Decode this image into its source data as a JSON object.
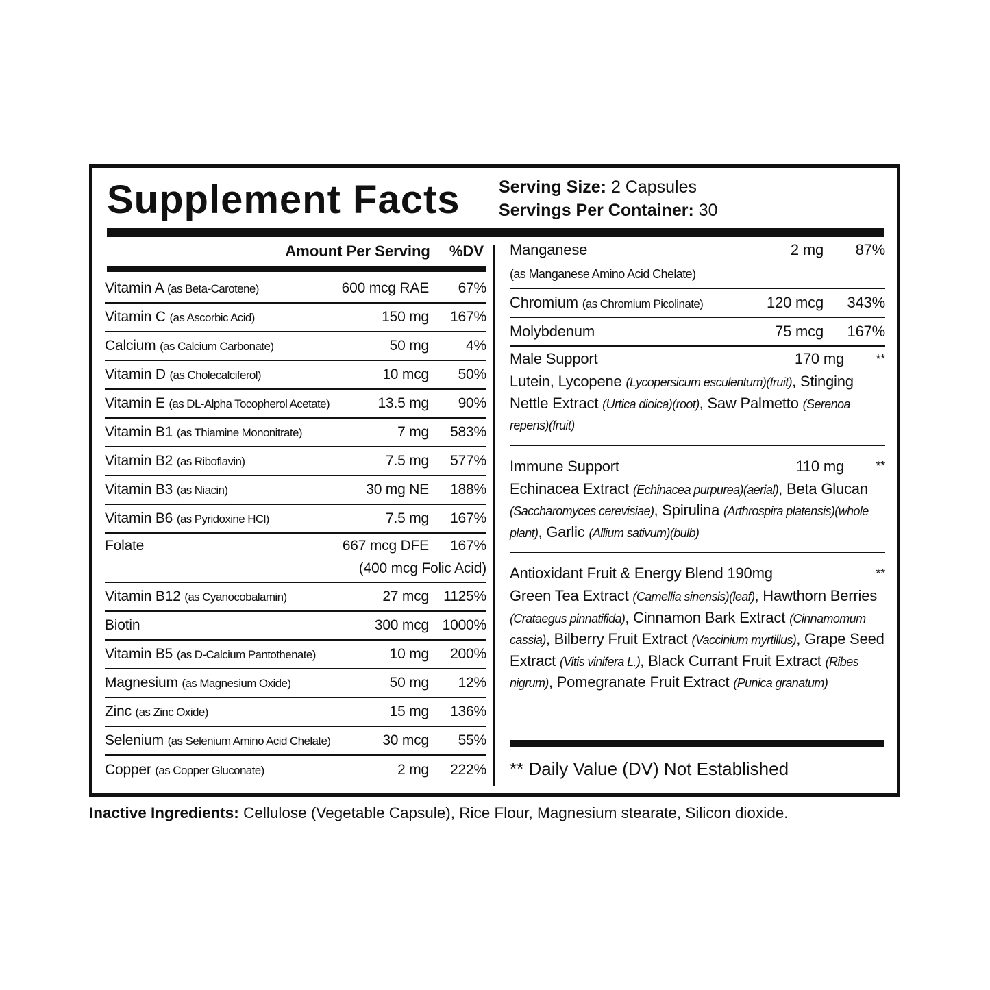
{
  "title": "Supplement Facts",
  "serving": {
    "size_label": "Serving Size:",
    "size_value": " 2 Capsules",
    "per_container_label": "Servings Per Container:",
    "per_container_value": " 30"
  },
  "left": {
    "header_amount": "Amount Per Serving",
    "header_dv": "%DV",
    "rows": [
      {
        "name": "Vitamin A",
        "sub": "(as Beta-Carotene)",
        "amount": "600 mcg RAE",
        "dv": "67%"
      },
      {
        "name": "Vitamin C",
        "sub": "(as Ascorbic Acid)",
        "amount": "150 mg",
        "dv": "167%"
      },
      {
        "name": "Calcium",
        "sub": "(as Calcium Carbonate)",
        "amount": "50 mg",
        "dv": "4%"
      },
      {
        "name": "Vitamin D",
        "sub": "(as Cholecalciferol)",
        "amount": "10 mcg",
        "dv": "50%"
      },
      {
        "name": "Vitamin E",
        "sub": "(as DL-Alpha Tocopherol Acetate)",
        "amount": "13.5 mg",
        "dv": "90%"
      },
      {
        "name": "Vitamin B1",
        "sub": "(as Thiamine Mononitrate)",
        "amount": "7 mg",
        "dv": "583%"
      },
      {
        "name": "Vitamin B2",
        "sub": "(as Riboflavin)",
        "amount": "7.5 mg",
        "dv": "577%"
      },
      {
        "name": "Vitamin B3",
        "sub": "(as Niacin)",
        "amount": "30 mg NE",
        "dv": "188%"
      },
      {
        "name": "Vitamin B6",
        "sub": "(as Pyridoxine HCl)",
        "amount": "7.5 mg",
        "dv": "167%"
      },
      {
        "name": "Folate",
        "sub": "",
        "amount": "667 mcg DFE",
        "dv": "167%",
        "amount2": "(400 mcg Folic Acid)"
      },
      {
        "name": "Vitamin B12",
        "sub": "(as Cyanocobalamin)",
        "amount": "27 mcg",
        "dv": "1125%"
      },
      {
        "name": "Biotin",
        "sub": "",
        "amount": "300 mcg",
        "dv": "1000%"
      },
      {
        "name": "Vitamin B5",
        "sub": "(as D-Calcium Pantothenate)",
        "amount": "10 mg",
        "dv": "200%"
      },
      {
        "name": "Magnesium",
        "sub": "(as Magnesium Oxide)",
        "amount": "50 mg",
        "dv": "12%"
      },
      {
        "name": "Zinc",
        "sub": "(as Zinc Oxide)",
        "amount": "15 mg",
        "dv": "136%"
      },
      {
        "name": "Selenium",
        "sub": "(as Selenium Amino Acid Chelate)",
        "amount": "30 mcg",
        "dv": "55%"
      },
      {
        "name": "Copper",
        "sub": "(as Copper Gluconate)",
        "amount": "2 mg",
        "dv": "222%"
      }
    ]
  },
  "right": {
    "rows": [
      {
        "name": "Manganese",
        "sub": "",
        "amount": "2 mg",
        "dv": "87%",
        "sub2": "(as Manganese Amino Acid Chelate)"
      },
      {
        "name": "Chromium",
        "sub": "(as Chromium Picolinate)",
        "amount": "120 mcg",
        "dv": "343%"
      },
      {
        "name": "Molybdenum",
        "sub": "",
        "amount": "75 mcg",
        "dv": "167%"
      }
    ],
    "blends": [
      {
        "name": "Male Support",
        "amount": "170 mg",
        "dv": "**",
        "parts": [
          [
            "Lutein, Lycopene ",
            ""
          ],
          [
            "(Lycopersicum esculentum)(fruit)",
            "i"
          ],
          [
            ", Stinging Nettle Extract ",
            ""
          ],
          [
            "(Urtica dioica)(root)",
            "i"
          ],
          [
            ", Saw Palmetto ",
            ""
          ],
          [
            "(Serenoa repens)(fruit)",
            "i"
          ]
        ]
      },
      {
        "name": "Immune Support",
        "amount": "110 mg",
        "dv": "**",
        "parts": [
          [
            "Echinacea Extract ",
            ""
          ],
          [
            "(Echinacea purpurea)(aerial)",
            "i"
          ],
          [
            ", Beta Glucan ",
            ""
          ],
          [
            "(Saccharomyces cerevisiae)",
            "i"
          ],
          [
            ", Spirulina ",
            ""
          ],
          [
            "(Arthrospira platensis)(whole plant)",
            "i"
          ],
          [
            ", Garlic ",
            ""
          ],
          [
            "(Allium sativum)(bulb)",
            "i"
          ]
        ]
      },
      {
        "name": "Antioxidant Fruit & Energy Blend 190mg",
        "amount": "",
        "dv": "**",
        "parts": [
          [
            "Green Tea Extract ",
            ""
          ],
          [
            "(Camellia sinensis)(leaf)",
            "i"
          ],
          [
            ", Hawthorn Berries ",
            ""
          ],
          [
            "(Crataegus pinnatifida)",
            "i"
          ],
          [
            ", Cinnamon Bark Extract ",
            ""
          ],
          [
            "(Cinnamomum cassia)",
            "i"
          ],
          [
            ", Bilberry Fruit Extract ",
            ""
          ],
          [
            "(Vaccinium myrtillus)",
            "i"
          ],
          [
            ", Grape Seed Extract ",
            ""
          ],
          [
            "(Vitis vinifera L.)",
            "i"
          ],
          [
            ", Black Currant Fruit Extract ",
            ""
          ],
          [
            "(Ribes nigrum)",
            "i"
          ],
          [
            ", Pomegranate Fruit Extract ",
            ""
          ],
          [
            "(Punica granatum)",
            "i"
          ]
        ]
      }
    ],
    "footnote": "** Daily Value (DV) Not Established"
  },
  "inactive": {
    "label": "Inactive Ingredients:",
    "value": " Cellulose (Vegetable Capsule), Rice Flour, Magnesium stearate, Silicon dioxide."
  }
}
